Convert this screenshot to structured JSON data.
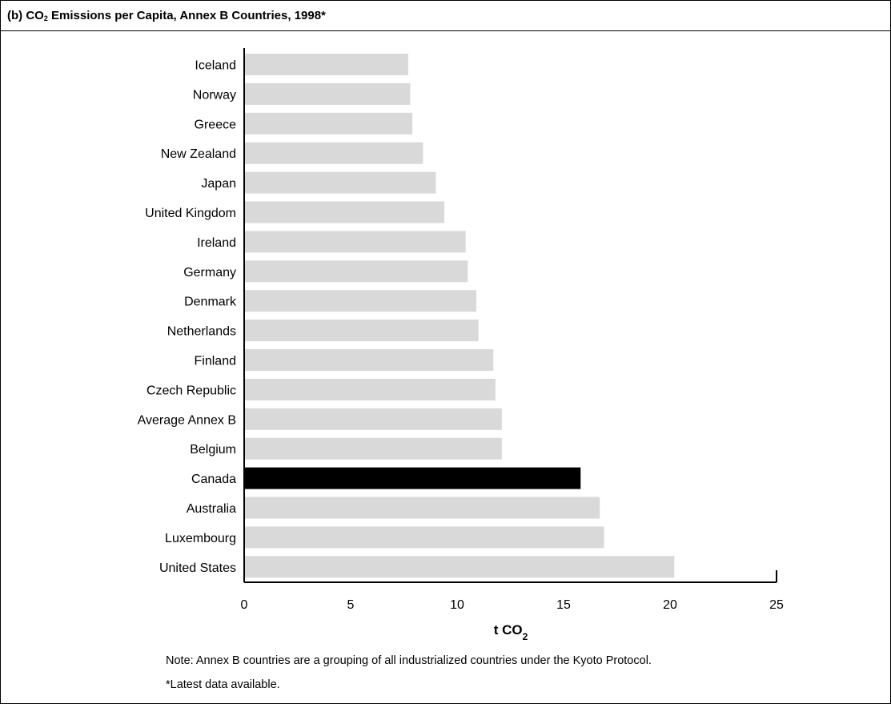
{
  "title": {
    "prefix": "(b) CO",
    "subscript": "2",
    "suffix": " Emissions per Capita, Annex B Countries, 1998*"
  },
  "notes": {
    "note": "Note: Annex B countries are a grouping of all industrialized countries under the Kyoto Protocol.",
    "footnote": "*Latest data available."
  },
  "colors": {
    "bar": "#d9d9d9",
    "highlight": "#000000",
    "axis": "#000000"
  },
  "chart_data": {
    "type": "bar",
    "orientation": "horizontal",
    "title": "(b) CO2 Emissions per Capita, Annex B Countries, 1998*",
    "xlabel": "t CO2",
    "ylabel": "",
    "xlim": [
      0,
      25
    ],
    "xticks": [
      0,
      5,
      10,
      15,
      20,
      25
    ],
    "grid": false,
    "highlight_category": "Canada",
    "categories": [
      "Iceland",
      "Norway",
      "Greece",
      "New Zealand",
      "Japan",
      "United Kingdom",
      "Ireland",
      "Germany",
      "Denmark",
      "Netherlands",
      "Finland",
      "Czech Republic",
      "Average Annex B",
      "Belgium",
      "Canada",
      "Australia",
      "Luxembourg",
      "United States"
    ],
    "values": [
      7.7,
      7.8,
      7.9,
      8.4,
      9.0,
      9.4,
      10.4,
      10.5,
      10.9,
      11.0,
      11.7,
      11.8,
      12.1,
      12.1,
      15.8,
      16.7,
      16.9,
      20.2
    ]
  }
}
